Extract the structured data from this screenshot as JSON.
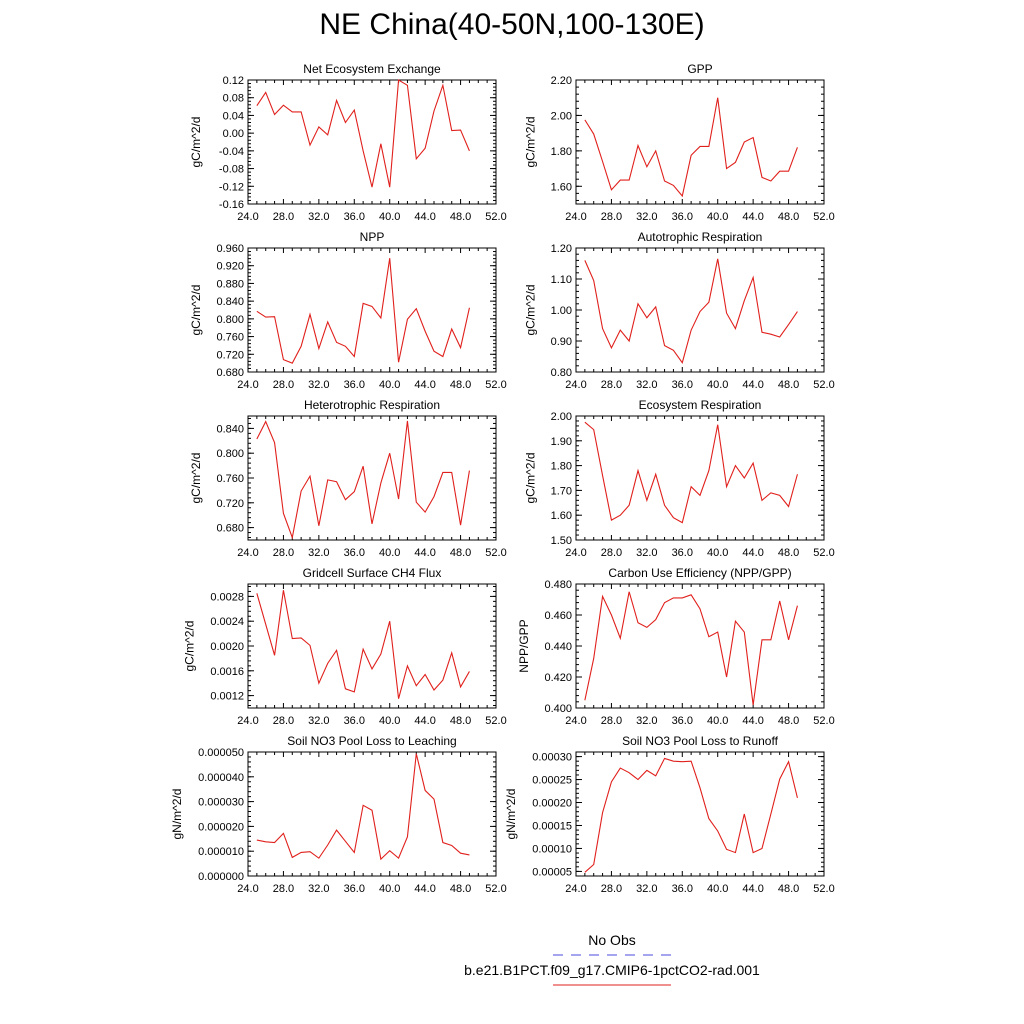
{
  "title": "NE China(40-50N,100-130E)",
  "legend": {
    "entries": [
      {
        "label": "No Obs",
        "color": "#4a4adf",
        "dash": true
      },
      {
        "label": "b.e21.B1PCT.f09_g17.CMIP6-1pctCO2-rad.001",
        "color": "#e0201c",
        "dash": false
      }
    ]
  },
  "line_color": "#e0201c",
  "chart_data": [
    {
      "type": "line",
      "title": "Net Ecosystem Exchange",
      "ylabel": "gC/m^2/d",
      "xlim": [
        24,
        52
      ],
      "ylim": [
        -0.16,
        0.12
      ],
      "xticks": [
        "24.0",
        "28.0",
        "32.0",
        "36.0",
        "40.0",
        "44.0",
        "48.0",
        "52.0"
      ],
      "yticks": [
        "-0.16",
        "-0.12",
        "-0.08",
        "-0.04",
        "0.00",
        "0.04",
        "0.08",
        "0.12"
      ],
      "x": [
        25,
        26,
        27,
        28,
        29,
        30,
        31,
        32,
        33,
        34,
        35,
        36,
        37,
        38,
        39,
        40,
        41,
        42,
        43,
        44,
        45,
        46,
        47,
        48,
        49
      ],
      "series": [
        {
          "values": [
            0.062,
            0.092,
            0.042,
            0.063,
            0.048,
            0.048,
            -0.027,
            0.014,
            -0.004,
            0.074,
            0.024,
            0.052,
            -0.04,
            -0.122,
            -0.024,
            -0.122,
            0.12,
            0.108,
            -0.058,
            -0.034,
            0.05,
            0.108,
            0.006,
            0.007,
            -0.04
          ]
        }
      ]
    },
    {
      "type": "line",
      "title": "GPP",
      "ylabel": "gC/m^2/d",
      "xlim": [
        24,
        52
      ],
      "ylim": [
        1.5,
        2.2
      ],
      "xticks": [
        "24.0",
        "28.0",
        "32.0",
        "36.0",
        "40.0",
        "44.0",
        "48.0",
        "52.0"
      ],
      "yticks": [
        "1.60",
        "1.80",
        "2.00",
        "2.20"
      ],
      "x": [
        25,
        26,
        27,
        28,
        29,
        30,
        31,
        32,
        33,
        34,
        35,
        36,
        37,
        38,
        39,
        40,
        41,
        42,
        43,
        44,
        45,
        46,
        47,
        48,
        49
      ],
      "series": [
        {
          "values": [
            1.975,
            1.895,
            1.74,
            1.58,
            1.635,
            1.635,
            1.83,
            1.71,
            1.8,
            1.63,
            1.605,
            1.545,
            1.775,
            1.825,
            1.825,
            2.1,
            1.7,
            1.735,
            1.85,
            1.875,
            1.65,
            1.63,
            1.685,
            1.685,
            1.82
          ]
        }
      ]
    },
    {
      "type": "line",
      "title": "NPP",
      "ylabel": "gC/m^2/d",
      "xlim": [
        24,
        52
      ],
      "ylim": [
        0.68,
        0.96
      ],
      "xticks": [
        "24.0",
        "28.0",
        "32.0",
        "36.0",
        "40.0",
        "44.0",
        "48.0",
        "52.0"
      ],
      "yticks": [
        "0.680",
        "0.720",
        "0.760",
        "0.800",
        "0.840",
        "0.880",
        "0.920",
        "0.960"
      ],
      "x": [
        25,
        26,
        27,
        28,
        29,
        30,
        31,
        32,
        33,
        34,
        35,
        36,
        37,
        38,
        39,
        40,
        41,
        42,
        43,
        44,
        45,
        46,
        47,
        48,
        49
      ],
      "series": [
        {
          "values": [
            0.817,
            0.804,
            0.805,
            0.708,
            0.7,
            0.738,
            0.81,
            0.733,
            0.793,
            0.747,
            0.738,
            0.715,
            0.835,
            0.828,
            0.802,
            0.937,
            0.702,
            0.799,
            0.823,
            0.772,
            0.727,
            0.715,
            0.777,
            0.735,
            0.825
          ]
        }
      ]
    },
    {
      "type": "line",
      "title": "Autotrophic Respiration",
      "ylabel": "gC/m^2/d",
      "xlim": [
        24,
        52
      ],
      "ylim": [
        0.8,
        1.2
      ],
      "xticks": [
        "24.0",
        "28.0",
        "32.0",
        "36.0",
        "40.0",
        "44.0",
        "48.0",
        "52.0"
      ],
      "yticks": [
        "0.80",
        "0.90",
        "1.00",
        "1.10",
        "1.20"
      ],
      "x": [
        25,
        26,
        27,
        28,
        29,
        30,
        31,
        32,
        33,
        34,
        35,
        36,
        37,
        38,
        39,
        40,
        41,
        42,
        43,
        44,
        45,
        46,
        47,
        48,
        49
      ],
      "series": [
        {
          "values": [
            1.16,
            1.095,
            0.94,
            0.878,
            0.935,
            0.9,
            1.02,
            0.975,
            1.01,
            0.885,
            0.87,
            0.83,
            0.935,
            0.995,
            1.025,
            1.165,
            0.99,
            0.94,
            1.03,
            1.105,
            0.928,
            0.922,
            0.913,
            0.953,
            0.995
          ]
        }
      ]
    },
    {
      "type": "line",
      "title": "Heterotrophic Respiration",
      "ylabel": "gC/m^2/d",
      "xlim": [
        24,
        52
      ],
      "ylim": [
        0.66,
        0.86
      ],
      "xticks": [
        "24.0",
        "28.0",
        "32.0",
        "36.0",
        "40.0",
        "44.0",
        "48.0",
        "52.0"
      ],
      "yticks": [
        "0.680",
        "0.720",
        "0.760",
        "0.800",
        "0.840"
      ],
      "x": [
        25,
        26,
        27,
        28,
        29,
        30,
        31,
        32,
        33,
        34,
        35,
        36,
        37,
        38,
        39,
        40,
        41,
        42,
        43,
        44,
        45,
        46,
        47,
        48,
        49
      ],
      "series": [
        {
          "values": [
            0.823,
            0.851,
            0.817,
            0.703,
            0.664,
            0.739,
            0.763,
            0.683,
            0.757,
            0.754,
            0.725,
            0.738,
            0.779,
            0.686,
            0.752,
            0.8,
            0.726,
            0.852,
            0.721,
            0.705,
            0.73,
            0.769,
            0.769,
            0.684,
            0.772
          ]
        }
      ]
    },
    {
      "type": "line",
      "title": "Ecosystem Respiration",
      "ylabel": "gC/m^2/d",
      "xlim": [
        24,
        52
      ],
      "ylim": [
        1.5,
        2.0
      ],
      "xticks": [
        "24.0",
        "28.0",
        "32.0",
        "36.0",
        "40.0",
        "44.0",
        "48.0",
        "52.0"
      ],
      "yticks": [
        "1.50",
        "1.60",
        "1.70",
        "1.80",
        "1.90",
        "2.00"
      ],
      "x": [
        25,
        26,
        27,
        28,
        29,
        30,
        31,
        32,
        33,
        34,
        35,
        36,
        37,
        38,
        39,
        40,
        41,
        42,
        43,
        44,
        45,
        46,
        47,
        48,
        49
      ],
      "series": [
        {
          "values": [
            1.975,
            1.945,
            1.76,
            1.58,
            1.6,
            1.64,
            1.78,
            1.66,
            1.765,
            1.64,
            1.59,
            1.57,
            1.715,
            1.68,
            1.78,
            1.965,
            1.715,
            1.8,
            1.75,
            1.81,
            1.66,
            1.69,
            1.68,
            1.635,
            1.765
          ]
        }
      ]
    },
    {
      "type": "line",
      "title": "Gridcell Surface CH4 Flux",
      "ylabel": "gC/m^2/d",
      "xlim": [
        24,
        52
      ],
      "ylim": [
        0.001,
        0.003
      ],
      "xticks": [
        "24.0",
        "28.0",
        "32.0",
        "36.0",
        "40.0",
        "44.0",
        "48.0",
        "52.0"
      ],
      "yticks": [
        "0.0012",
        "0.0016",
        "0.0020",
        "0.0024",
        "0.0028"
      ],
      "x": [
        25,
        26,
        27,
        28,
        29,
        30,
        31,
        32,
        33,
        34,
        35,
        36,
        37,
        38,
        39,
        40,
        41,
        42,
        43,
        44,
        45,
        46,
        47,
        48,
        49
      ],
      "series": [
        {
          "values": [
            0.00285,
            0.00235,
            0.00185,
            0.0029,
            0.00212,
            0.00213,
            0.00201,
            0.0014,
            0.00172,
            0.00193,
            0.00131,
            0.00126,
            0.00195,
            0.00163,
            0.00187,
            0.0024,
            0.00115,
            0.00168,
            0.00136,
            0.00154,
            0.00129,
            0.00145,
            0.00189,
            0.00134,
            0.00159
          ]
        }
      ]
    },
    {
      "type": "line",
      "title": "Carbon Use Efficiency (NPP/GPP)",
      "ylabel": "NPP/GPP",
      "xlim": [
        24,
        52
      ],
      "ylim": [
        0.4,
        0.48
      ],
      "xticks": [
        "24.0",
        "28.0",
        "32.0",
        "36.0",
        "40.0",
        "44.0",
        "48.0",
        "52.0"
      ],
      "yticks": [
        "0.400",
        "0.420",
        "0.440",
        "0.460",
        "0.480"
      ],
      "x": [
        25,
        26,
        27,
        28,
        29,
        30,
        31,
        32,
        33,
        34,
        35,
        36,
        37,
        38,
        39,
        40,
        41,
        42,
        43,
        44,
        45,
        46,
        47,
        48,
        49
      ],
      "series": [
        {
          "values": [
            0.405,
            0.432,
            0.472,
            0.46,
            0.445,
            0.475,
            0.455,
            0.452,
            0.457,
            0.468,
            0.471,
            0.471,
            0.473,
            0.464,
            0.446,
            0.449,
            0.42,
            0.456,
            0.449,
            0.402,
            0.444,
            0.444,
            0.469,
            0.444,
            0.466
          ]
        }
      ]
    },
    {
      "type": "line",
      "title": "Soil NO3 Pool Loss to Leaching",
      "ylabel": "gN/m^2/d",
      "xlim": [
        24,
        52
      ],
      "ylim": [
        0,
        5e-05
      ],
      "xticks": [
        "24.0",
        "28.0",
        "32.0",
        "36.0",
        "40.0",
        "44.0",
        "48.0",
        "52.0"
      ],
      "yticks": [
        "0.000000",
        "0.000010",
        "0.000020",
        "0.000030",
        "0.000040",
        "0.000050"
      ],
      "x": [
        25,
        26,
        27,
        28,
        29,
        30,
        31,
        32,
        33,
        34,
        35,
        36,
        37,
        38,
        39,
        40,
        41,
        42,
        43,
        44,
        45,
        46,
        47,
        48,
        49
      ],
      "series": [
        {
          "values": [
            1.45e-05,
            1.38e-05,
            1.35e-05,
            1.72e-05,
            7.5e-06,
            9.5e-06,
            9.8e-06,
            7.2e-06,
            1.25e-05,
            1.85e-05,
            1.4e-05,
            9.5e-06,
            2.85e-05,
            2.65e-05,
            6.8e-06,
            1.02e-05,
            7.2e-06,
            1.58e-05,
            4.93e-05,
            3.45e-05,
            3.1e-05,
            1.35e-05,
            1.23e-05,
            9.2e-06,
            8.5e-06
          ]
        }
      ]
    },
    {
      "type": "line",
      "title": "Soil NO3 Pool Loss to Runoff",
      "ylabel": "gN/m^2/d",
      "xlim": [
        24,
        52
      ],
      "ylim": [
        4e-05,
        0.00031
      ],
      "xticks": [
        "24.0",
        "28.0",
        "32.0",
        "36.0",
        "40.0",
        "44.0",
        "48.0",
        "52.0"
      ],
      "yticks": [
        "0.00005",
        "0.00010",
        "0.00015",
        "0.00020",
        "0.00025",
        "0.00030"
      ],
      "x": [
        25,
        26,
        27,
        28,
        29,
        30,
        31,
        32,
        33,
        34,
        35,
        36,
        37,
        38,
        39,
        40,
        41,
        42,
        43,
        44,
        45,
        46,
        47,
        48,
        49
      ],
      "series": [
        {
          "values": [
            4.8e-05,
            6.5e-05,
            0.000178,
            0.000245,
            0.000275,
            0.000265,
            0.00025,
            0.00027,
            0.000258,
            0.000296,
            0.00029,
            0.000289,
            0.00029,
            0.000232,
            0.000165,
            0.000138,
            9.8e-05,
            9.1e-05,
            0.000175,
            9.1e-05,
            0.0001,
            0.000175,
            0.000251,
            0.000289,
            0.00021
          ]
        }
      ]
    }
  ]
}
